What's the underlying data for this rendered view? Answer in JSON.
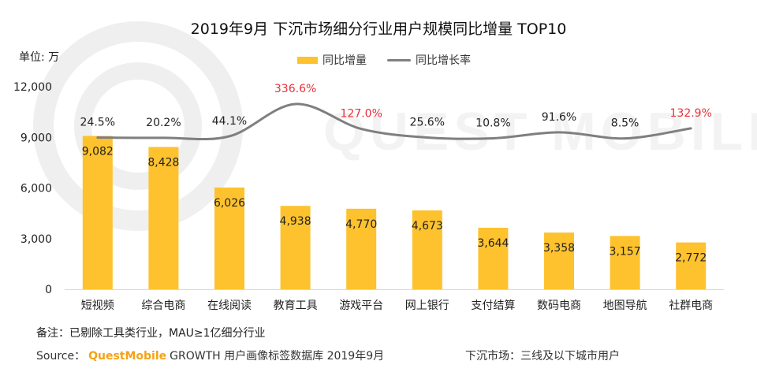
{
  "title": "2019年9月 下沉市场细分行业用户规模同比增量 TOP10",
  "unit_label": "单位: 万",
  "legend": {
    "bar": "同比增量",
    "line": "同比增长率"
  },
  "note": "备注：已剔除工具类行业，MAU≥1亿细分行业",
  "source": {
    "prefix": "Source：",
    "brand": "QuestMobile",
    "rest": "GROWTH 用户画像标签数据库  2019年9月"
  },
  "definition": "下沉市场：三线及以下城市用户",
  "watermark": "QUEST MOBILE",
  "colors": {
    "bar": "#FDC22D",
    "line": "#7F7F7F",
    "highlight": "#E8303A",
    "text": "#222222"
  },
  "chart_data": {
    "type": "bar",
    "title": "2019年9月 下沉市场细分行业用户规模同比增量 TOP10",
    "ylabel": "单位: 万",
    "ylim": [
      0,
      12000
    ],
    "yticks": [
      0,
      3000,
      6000,
      9000,
      12000
    ],
    "ytick_labels": [
      "0",
      "3,000",
      "6,000",
      "9,000",
      "12,000"
    ],
    "categories": [
      "短视频",
      "综合电商",
      "在线阅读",
      "教育工具",
      "游戏平台",
      "网上银行",
      "支付结算",
      "数码电商",
      "地图导航",
      "社群电商"
    ],
    "series": [
      {
        "name": "同比增量",
        "type": "bar",
        "values": [
          9082,
          8428,
          6026,
          4938,
          4770,
          4673,
          3644,
          3358,
          3157,
          2772
        ],
        "labels": [
          "9,082",
          "8,428",
          "6,026",
          "4,938",
          "4,770",
          "4,673",
          "3,644",
          "3,358",
          "3,157",
          "2,772"
        ]
      },
      {
        "name": "同比增长率",
        "type": "line",
        "values": [
          24.5,
          20.2,
          44.1,
          336.6,
          127.0,
          25.6,
          10.8,
          91.6,
          8.5,
          132.9
        ],
        "labels": [
          "24.5%",
          "20.2%",
          "44.1%",
          "336.6%",
          "127.0%",
          "25.6%",
          "10.8%",
          "91.6%",
          "8.5%",
          "132.9%"
        ],
        "highlighted": [
          false,
          false,
          false,
          true,
          true,
          false,
          false,
          false,
          false,
          true
        ]
      }
    ]
  }
}
